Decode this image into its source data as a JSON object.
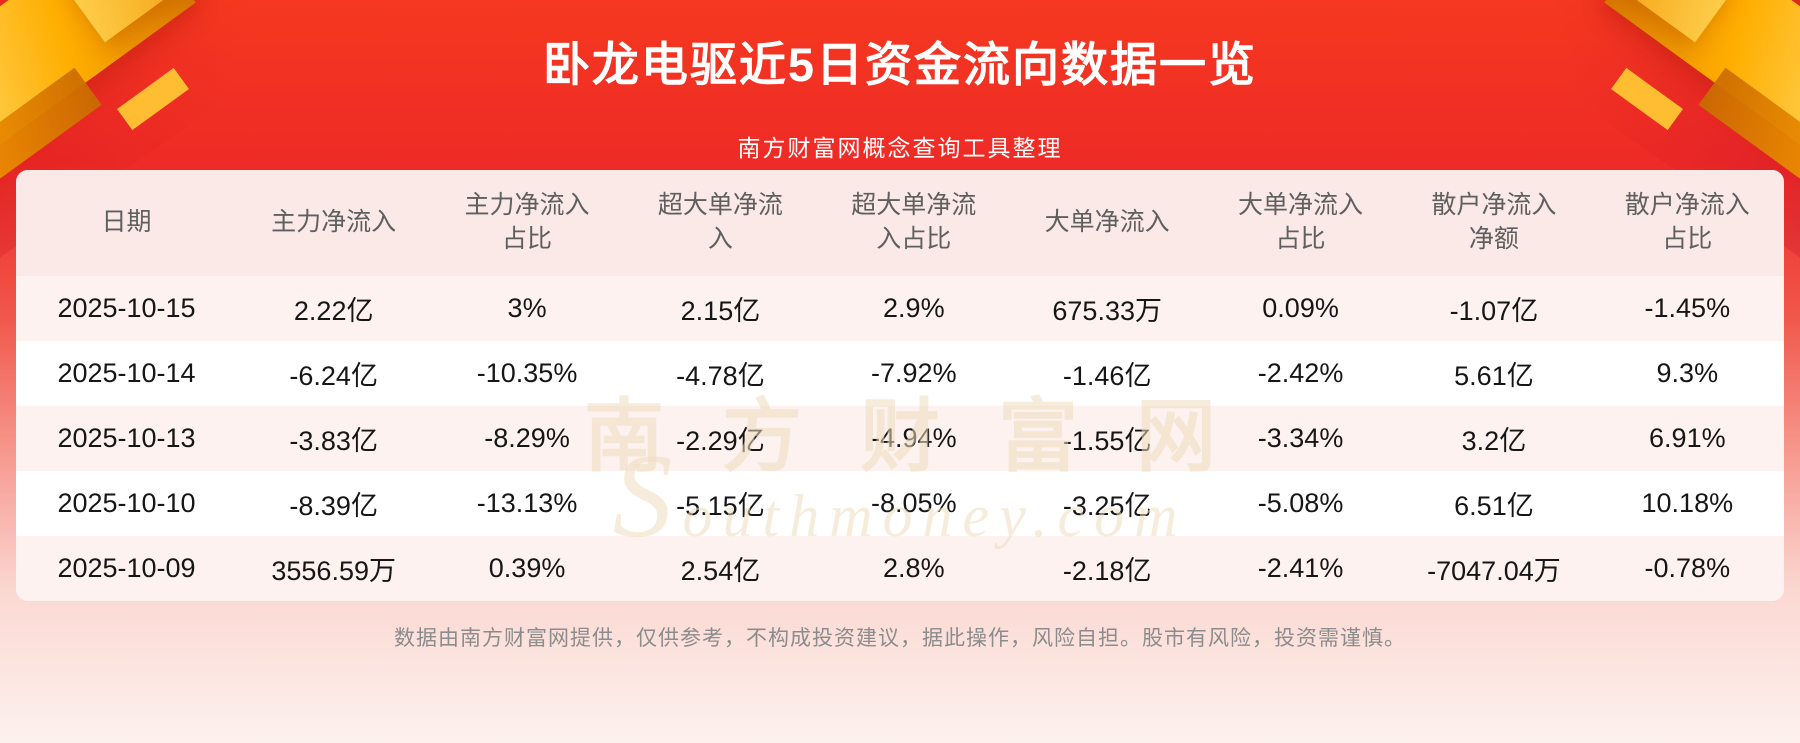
{
  "header": {
    "title": "卧龙电驱近5日资金流向数据一览",
    "subtitle": "南方财富网概念查询工具整理"
  },
  "chart_data": {
    "type": "table",
    "title": "卧龙电驱近5日资金流向数据一览",
    "subtitle": "南方财富网概念查询工具整理",
    "columns": [
      "日期",
      "主力净流入",
      "主力净流入\n占比",
      "超大单净流\n入",
      "超大单净流\n入占比",
      "大单净流入",
      "大单净流入\n占比",
      "散户净流入\n净额",
      "散户净流入\n占比"
    ],
    "rows": [
      [
        "2025-10-15",
        "2.22亿",
        "3%",
        "2.15亿",
        "2.9%",
        "675.33万",
        "0.09%",
        "-1.07亿",
        "-1.45%"
      ],
      [
        "2025-10-14",
        "-6.24亿",
        "-10.35%",
        "-4.78亿",
        "-7.92%",
        "-1.46亿",
        "-2.42%",
        "5.61亿",
        "9.3%"
      ],
      [
        "2025-10-13",
        "-3.83亿",
        "-8.29%",
        "-2.29亿",
        "-4.94%",
        "-1.55亿",
        "-3.34%",
        "3.2亿",
        "6.91%"
      ],
      [
        "2025-10-10",
        "-8.39亿",
        "-13.13%",
        "-5.15亿",
        "-8.05%",
        "-3.25亿",
        "-5.08%",
        "6.51亿",
        "10.18%"
      ],
      [
        "2025-10-09",
        "3556.59万",
        "0.39%",
        "2.54亿",
        "2.8%",
        "-2.18亿",
        "-2.41%",
        "-7047.04万",
        "-0.78%"
      ]
    ]
  },
  "watermark": {
    "line1": "南方财富网",
    "line2": "Southmoney.com"
  },
  "footer": {
    "disclaimer": "数据由南方财富网提供，仅供参考，不构成投资建议，据此操作，风险自担。股市有风险，投资需谨慎。"
  },
  "colors": {
    "background_red": "#f13122",
    "background_pink": "#fdf0ed",
    "gold_accent": "#ffb71d",
    "table_header_bg": "#fbe9e8",
    "row_stripe_bg": "#fdf2f0",
    "title_text": "#ffffff",
    "body_text": "#161616",
    "column_header_text": "#5f5f5f",
    "footer_text": "#8c8c8c",
    "watermark_text": "#eedcbe"
  }
}
